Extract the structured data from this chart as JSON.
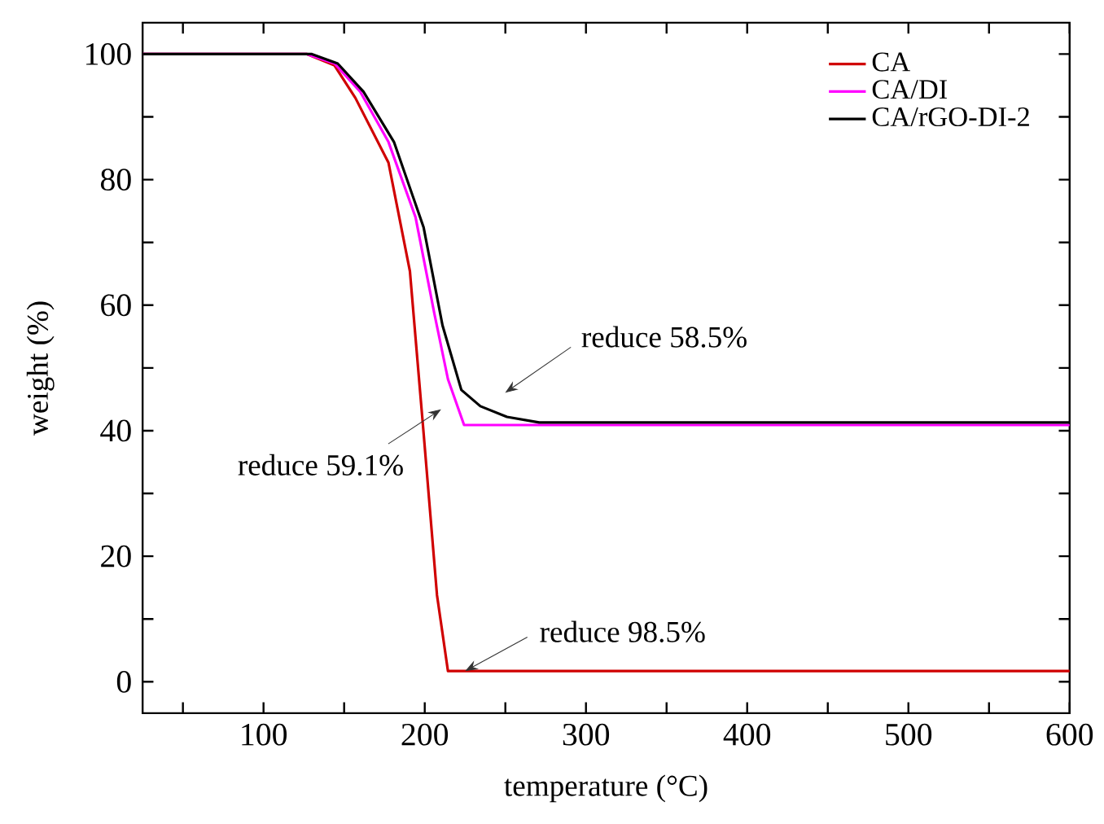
{
  "chart_data": {
    "type": "line",
    "xlabel": "temperature (°C)",
    "ylabel": "weight (%)",
    "xlim": [
      25,
      600
    ],
    "ylim": [
      -5,
      105
    ],
    "xticks": [
      {
        "value": 50,
        "label": null
      },
      100,
      {
        "value": 150,
        "label": null
      },
      200,
      {
        "value": 250,
        "label": null
      },
      300,
      {
        "value": 350,
        "label": null
      },
      400,
      {
        "value": 450,
        "label": null
      },
      500,
      {
        "value": 550,
        "label": null
      },
      600
    ],
    "yticks": [
      0,
      {
        "value": 10,
        "label": null
      },
      20,
      {
        "value": 30,
        "label": null
      },
      40,
      {
        "value": 50,
        "label": null
      },
      60,
      {
        "value": 70,
        "label": null
      },
      80,
      {
        "value": 90,
        "label": null
      },
      100
    ],
    "legend": "top right",
    "grid": false,
    "marker": "none",
    "line_style": "solid",
    "series": [
      {
        "name": "CA",
        "color": "#d00000",
        "x": [
          25,
          127,
          144,
          157,
          177.5,
          190.8,
          199.3,
          207.6,
          214.4,
          600
        ],
        "values": [
          100,
          100,
          98.2,
          93,
          82.7,
          65.4,
          39.6,
          13.8,
          1.7,
          1.7
        ]
      },
      {
        "name": "CA/DI",
        "color": "#ff00ff",
        "x": [
          25,
          127,
          144,
          160,
          177.5,
          194.3,
          206,
          214.4,
          224.4,
          600
        ],
        "values": [
          100,
          100,
          98.5,
          94,
          86,
          74,
          58.6,
          48.2,
          40.9,
          40.9
        ]
      },
      {
        "name": "CA/rGO-DI-2",
        "color": "#000000",
        "x": [
          25,
          130,
          146,
          162,
          180.9,
          199.3,
          211,
          222.7,
          234.5,
          251,
          271,
          600
        ],
        "values": [
          100,
          100,
          98.5,
          94,
          86,
          72.4,
          56.8,
          46.5,
          43.9,
          42.2,
          41.3,
          41.3
        ]
      }
    ],
    "annotations": [
      "reduce 58.5%",
      "reduce 59.1%",
      {
        "text": "reduce 98.5%",
        "x": 225,
        "y": 1.7
      }
    ]
  }
}
